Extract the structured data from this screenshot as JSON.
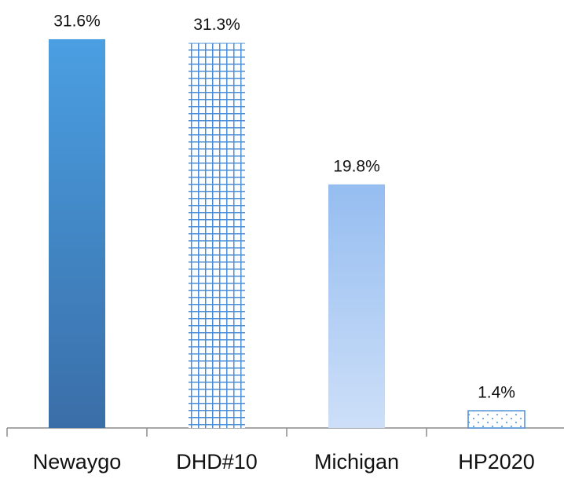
{
  "chart_data": {
    "type": "bar",
    "categories": [
      "Newaygo",
      "DHD#10",
      "Michigan",
      "HP2020"
    ],
    "values": [
      31.6,
      31.3,
      19.8,
      1.4
    ],
    "value_labels": [
      "31.6%",
      "31.3%",
      "19.8%",
      "1.4%"
    ],
    "ylim": [
      0,
      32
    ]
  }
}
